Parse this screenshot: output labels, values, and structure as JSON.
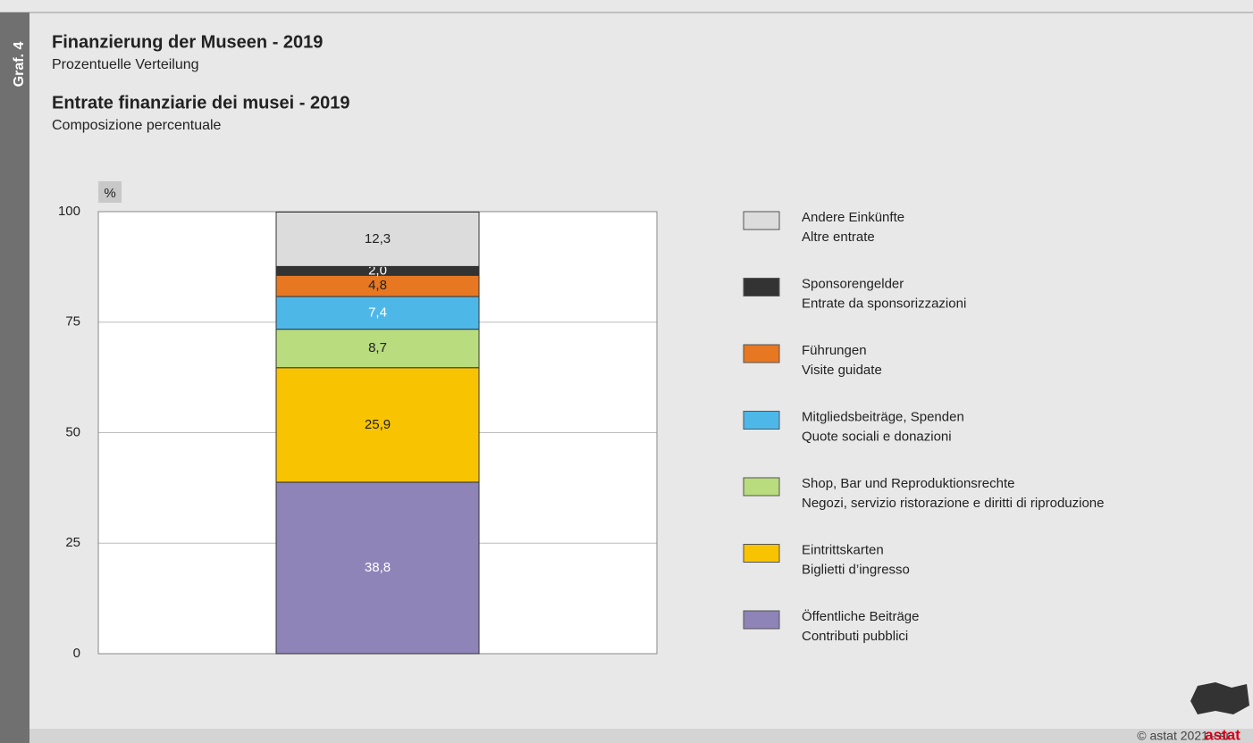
{
  "chart_data": {
    "type": "stacked_bar",
    "badge": "Graf. 4",
    "title": "Finanzierung der Museen - 2019",
    "subtitle": "Prozentuelle Verteilung",
    "title_it": "Entrate finanziarie dei musei - 2019",
    "subtitle_it": "Composizione percentuale",
    "unit": "%",
    "categories": [
      null
    ],
    "ylim": [
      0,
      100
    ],
    "yticks": [
      0,
      25,
      50,
      75,
      100
    ],
    "grid": true,
    "legend": "right",
    "series": [
      {
        "name": "Öffentliche Beiträge",
        "name_it": "Contributi pubblici",
        "color": "#8e84b8",
        "label_color": "#ffffff",
        "values": [
          38.8
        ],
        "value_labels": [
          "38,8"
        ]
      },
      {
        "name": "Eintrittskarten",
        "name_it": "Biglietti d’ingresso",
        "color": "#f8c300",
        "label_color": "#222222",
        "values": [
          25.9
        ],
        "value_labels": [
          "25,9"
        ]
      },
      {
        "name": "Shop, Bar und Reproduktionsrechte",
        "name_it": "Negozi, servizio ristorazione e diritti di riproduzione",
        "color": "#b8dc7e",
        "label_color": "#222222",
        "values": [
          8.7
        ],
        "value_labels": [
          "8,7"
        ]
      },
      {
        "name": "Mitgliedsbeiträge, Spenden",
        "name_it": "Quote sociali e donazioni",
        "color": "#4db8e8",
        "label_color": "#ffffff",
        "values": [
          7.4
        ],
        "value_labels": [
          "7,4"
        ]
      },
      {
        "name": "Führungen",
        "name_it": "Visite guidate",
        "color": "#e87722",
        "label_color": "#222222",
        "values": [
          4.8
        ],
        "value_labels": [
          "4,8"
        ]
      },
      {
        "name": "Sponsorengelder",
        "name_it": "Entrate da sponsorizzazioni",
        "color": "#333333",
        "label_color": "#ffffff",
        "values": [
          2.0
        ],
        "value_labels": [
          "2,0"
        ]
      },
      {
        "name": "Andere Einkünfte",
        "name_it": "Altre entrate",
        "color": "#dcdcdc",
        "label_color": "#222222",
        "values": [
          12.3
        ],
        "value_labels": [
          "12,3"
        ]
      }
    ],
    "footer": "© astat 2021 - sr",
    "logo": "astat"
  }
}
